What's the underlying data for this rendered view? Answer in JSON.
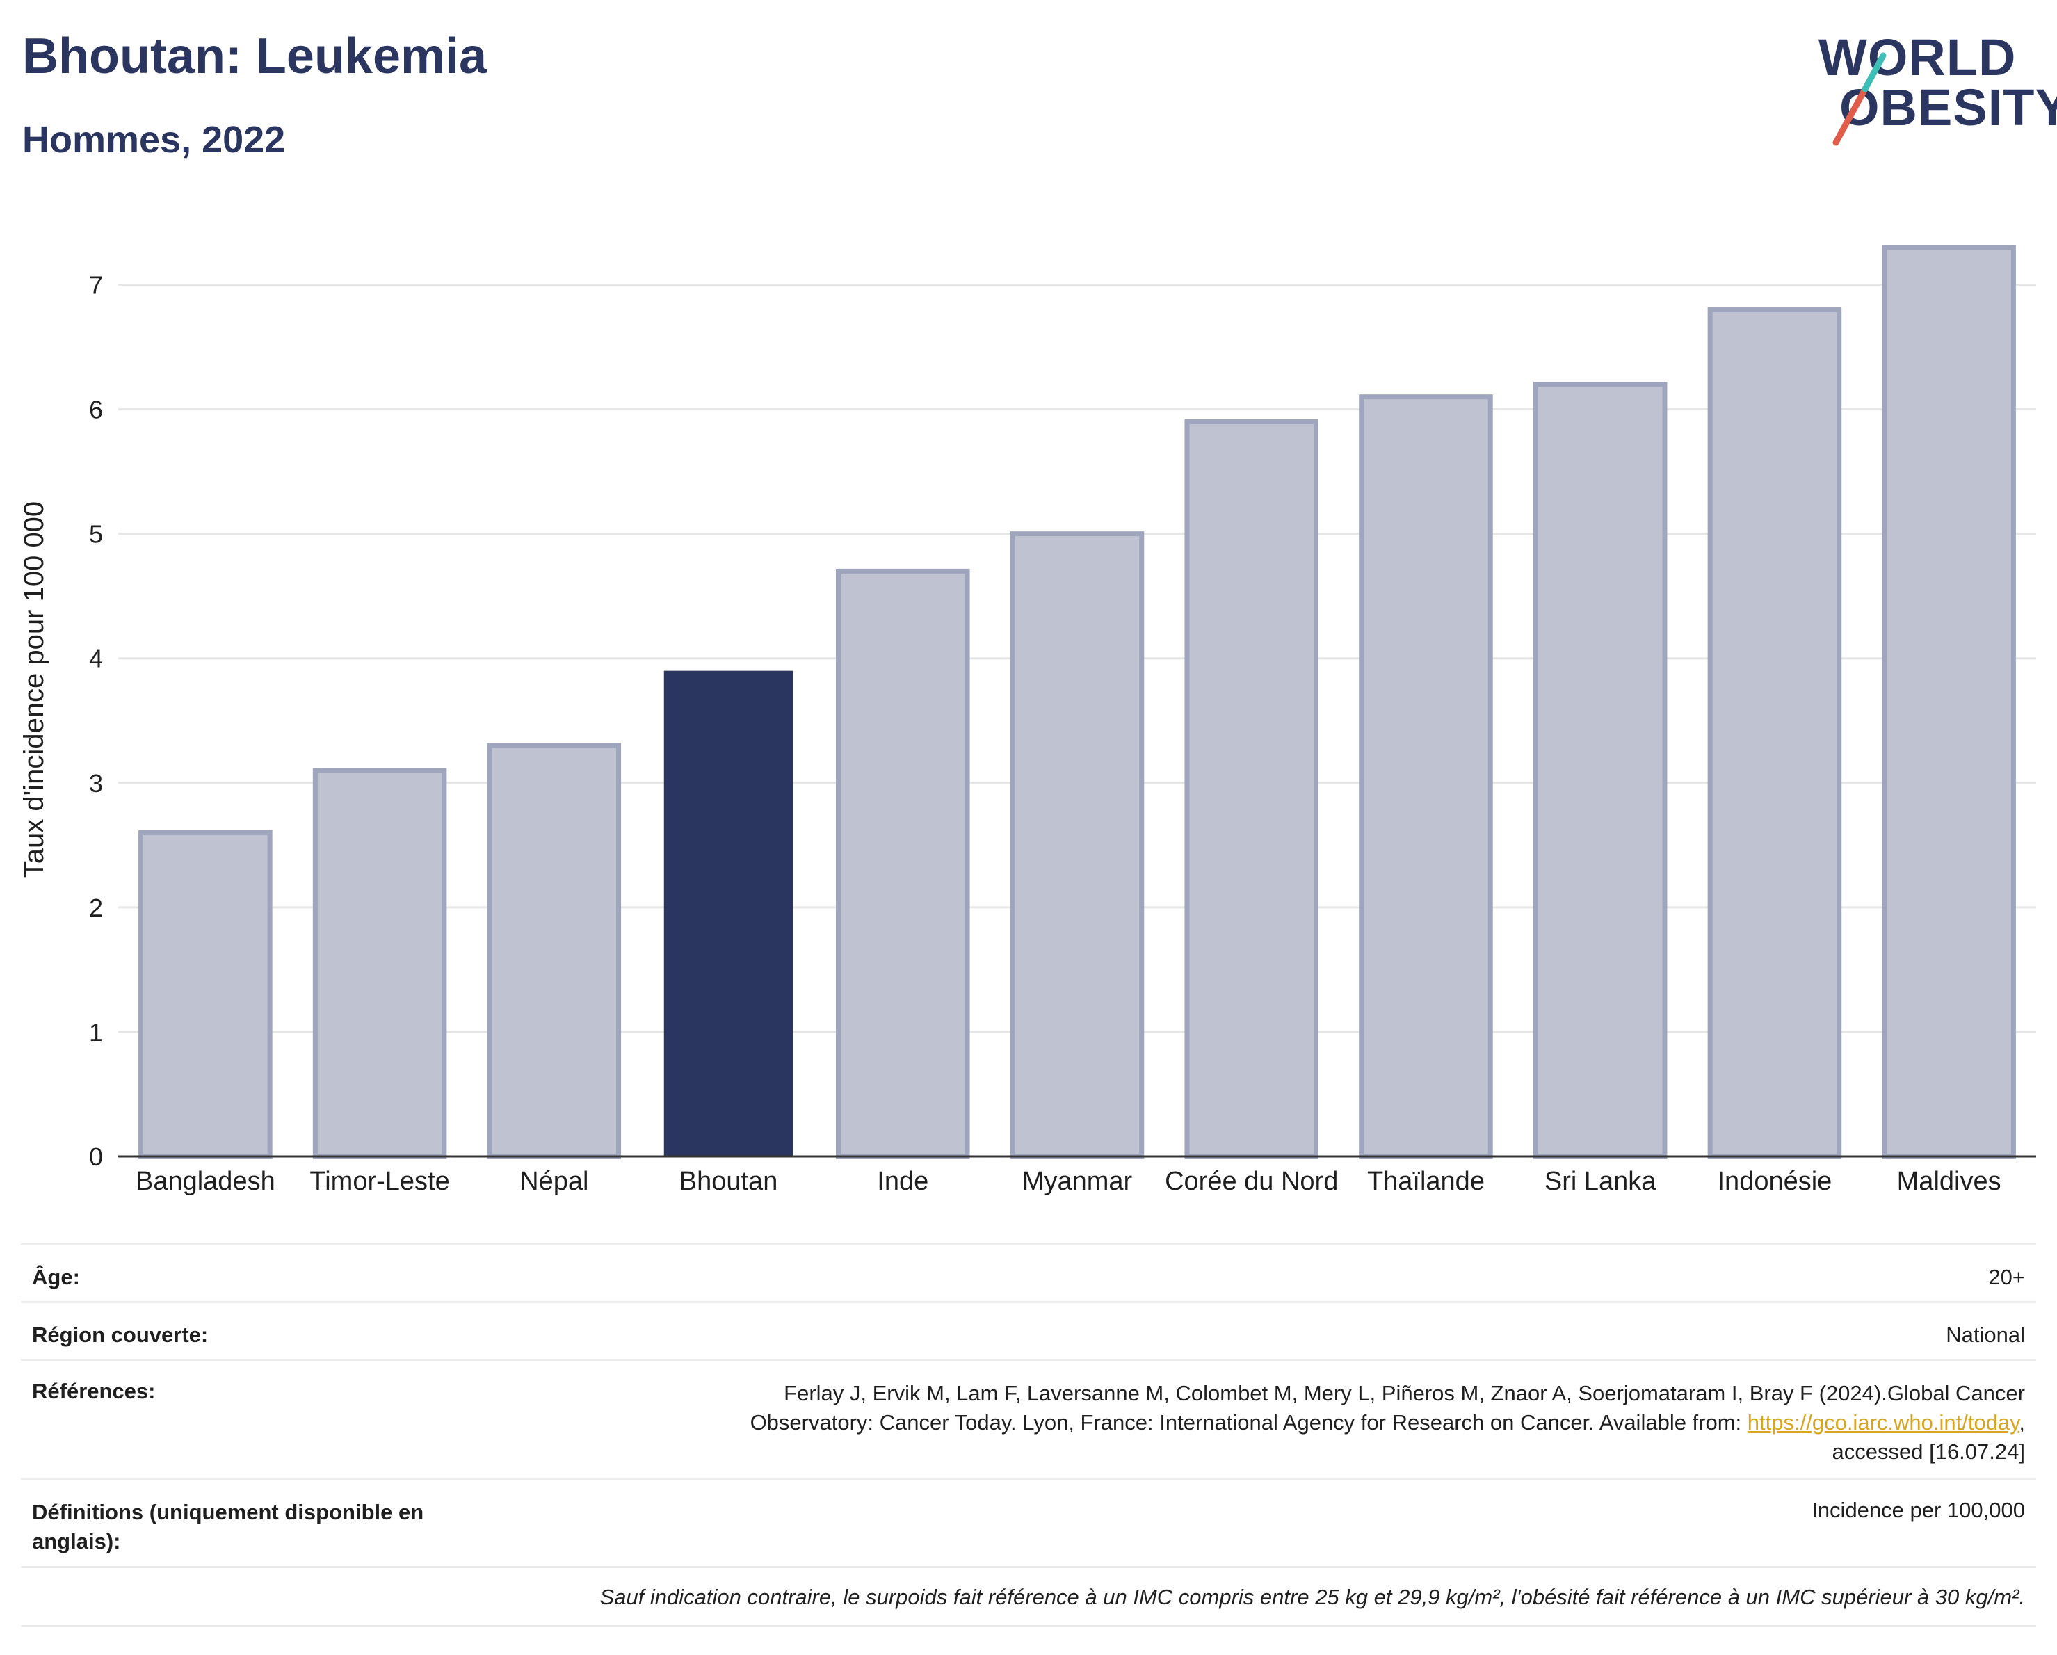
{
  "header": {
    "title": "Bhoutan: Leukemia",
    "subtitle": "Hommes, 2022"
  },
  "logo": {
    "line1": "WORLD",
    "line2": "OBESITY",
    "slash_colors": [
      "#e05d4c",
      "#3dbfb8"
    ]
  },
  "chart_data": {
    "type": "bar",
    "categories": [
      "Bangladesh",
      "Timor-Leste",
      "Népal",
      "Bhoutan",
      "Inde",
      "Myanmar",
      "Corée du Nord",
      "Thaïlande",
      "Sri Lanka",
      "Indonésie",
      "Maldives"
    ],
    "values": [
      2.6,
      3.1,
      3.3,
      3.9,
      4.7,
      5.0,
      5.9,
      6.1,
      6.2,
      6.8,
      7.3
    ],
    "highlight": "Bhoutan",
    "ylabel": "Taux d'incidence pour 100 000",
    "ylim": [
      0,
      7.5
    ],
    "yticks": [
      0,
      1,
      2,
      3,
      4,
      5,
      6,
      7
    ],
    "grid": true,
    "colors": {
      "highlight": "#2a365f",
      "bar": "#bfc3d1",
      "bar_border": "#9ea5bc",
      "grid": "#e6e6e6"
    }
  },
  "info": {
    "age_label": "Âge:",
    "age_value": "20+",
    "region_label": "Région couverte:",
    "region_value": "National",
    "refs_label": "Références:",
    "refs_line1": "Ferlay J, Ervik M, Lam F, Laversanne M, Colombet M, Mery L, Piñeros M, Znaor A, Soerjomataram I, Bray F (2024).Global Cancer",
    "refs_line2_pre": "Observatory: Cancer Today. Lyon, France: International Agency for Research on Cancer. Available from: ",
    "refs_link": "https://gco.iarc.who.int/today",
    "refs_line2_post": ",",
    "refs_line3": "accessed [16.07.24]",
    "defs_label_1": "Définitions (uniquement disponible en",
    "defs_label_2": "anglais):",
    "defs_value": "Incidence per 100,000",
    "note": "Sauf indication contraire, le surpoids fait référence à un IMC compris entre 25 kg et 29,9 kg/m², l'obésité fait référence à un IMC supérieur à 30 kg/m²."
  }
}
